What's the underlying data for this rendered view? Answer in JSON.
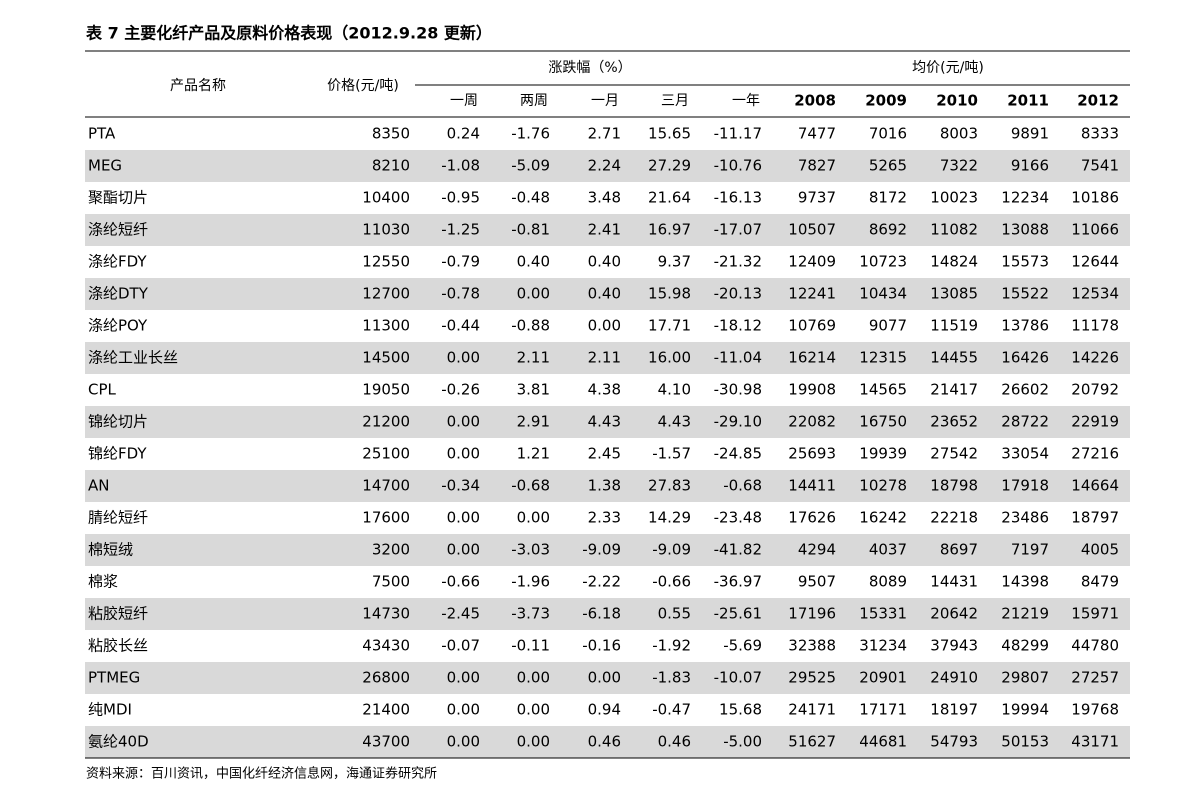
{
  "title": "表 7 主要化纤产品及原料价格表现（2012.9.28 更新）",
  "colors": {
    "up": "#c00000",
    "down": "#00a04a",
    "flat": "#000000",
    "stripe": "#d9d9d9"
  },
  "header": {
    "name": "产品名称",
    "price": "价格(元/吨)",
    "change_group": "涨跌幅（%）",
    "change_cols": [
      "一周",
      "两周",
      "一月",
      "三月",
      "一年"
    ],
    "avg_group": "均价(元/吨)",
    "avg_cols": [
      "2008",
      "2009",
      "2010",
      "2011",
      "2012"
    ]
  },
  "table": {
    "rows": [
      [
        "PTA",
        "8350",
        "0.24",
        "-1.76",
        "2.71",
        "15.65",
        "-11.17",
        "7477",
        "7016",
        "8003",
        "9891",
        "8333"
      ],
      [
        "MEG",
        "8210",
        "-1.08",
        "-5.09",
        "2.24",
        "27.29",
        "-10.76",
        "7827",
        "5265",
        "7322",
        "9166",
        "7541"
      ],
      [
        "聚酯切片",
        "10400",
        "-0.95",
        "-0.48",
        "3.48",
        "21.64",
        "-16.13",
        "9737",
        "8172",
        "10023",
        "12234",
        "10186"
      ],
      [
        "涤纶短纤",
        "11030",
        "-1.25",
        "-0.81",
        "2.41",
        "16.97",
        "-17.07",
        "10507",
        "8692",
        "11082",
        "13088",
        "11066"
      ],
      [
        "涤纶FDY",
        "12550",
        "-0.79",
        "0.40",
        "0.40",
        "9.37",
        "-21.32",
        "12409",
        "10723",
        "14824",
        "15573",
        "12644"
      ],
      [
        "涤纶DTY",
        "12700",
        "-0.78",
        "0.00",
        "0.40",
        "15.98",
        "-20.13",
        "12241",
        "10434",
        "13085",
        "15522",
        "12534"
      ],
      [
        "涤纶POY",
        "11300",
        "-0.44",
        "-0.88",
        "0.00",
        "17.71",
        "-18.12",
        "10769",
        "9077",
        "11519",
        "13786",
        "11178"
      ],
      [
        "涤纶工业长丝",
        "14500",
        "0.00",
        "2.11",
        "2.11",
        "16.00",
        "-11.04",
        "16214",
        "12315",
        "14455",
        "16426",
        "14226"
      ],
      [
        "CPL",
        "19050",
        "-0.26",
        "3.81",
        "4.38",
        "4.10",
        "-30.98",
        "19908",
        "14565",
        "21417",
        "26602",
        "20792"
      ],
      [
        "锦纶切片",
        "21200",
        "0.00",
        "2.91",
        "4.43",
        "4.43",
        "-29.10",
        "22082",
        "16750",
        "23652",
        "28722",
        "22919"
      ],
      [
        "锦纶FDY",
        "25100",
        "0.00",
        "1.21",
        "2.45",
        "-1.57",
        "-24.85",
        "25693",
        "19939",
        "27542",
        "33054",
        "27216"
      ],
      [
        "AN",
        "14700",
        "-0.34",
        "-0.68",
        "1.38",
        "27.83",
        "-0.68",
        "14411",
        "10278",
        "18798",
        "17918",
        "14664"
      ],
      [
        "腈纶短纤",
        "17600",
        "0.00",
        "0.00",
        "2.33",
        "14.29",
        "-23.48",
        "17626",
        "16242",
        "22218",
        "23486",
        "18797"
      ],
      [
        "棉短绒",
        "3200",
        "0.00",
        "-3.03",
        "-9.09",
        "-9.09",
        "-41.82",
        "4294",
        "4037",
        "8697",
        "7197",
        "4005"
      ],
      [
        "棉浆",
        "7500",
        "-0.66",
        "-1.96",
        "-2.22",
        "-0.66",
        "-36.97",
        "9507",
        "8089",
        "14431",
        "14398",
        "8479"
      ],
      [
        "粘胶短纤",
        "14730",
        "-2.45",
        "-3.73",
        "-6.18",
        "0.55",
        "-25.61",
        "17196",
        "15331",
        "20642",
        "21219",
        "15971"
      ],
      [
        "粘胶长丝",
        "43430",
        "-0.07",
        "-0.11",
        "-0.16",
        "-1.92",
        "-5.69",
        "32388",
        "31234",
        "37943",
        "48299",
        "44780"
      ],
      [
        "PTMEG",
        "26800",
        "0.00",
        "0.00",
        "0.00",
        "-1.83",
        "-10.07",
        "29525",
        "20901",
        "24910",
        "29807",
        "27257"
      ],
      [
        "纯MDI",
        "21400",
        "0.00",
        "0.00",
        "0.94",
        "-0.47",
        "15.68",
        "24171",
        "17171",
        "18197",
        "19994",
        "19768"
      ],
      [
        "氨纶40D",
        "43700",
        "0.00",
        "0.00",
        "0.46",
        "0.46",
        "-5.00",
        "51627",
        "44681",
        "54793",
        "50153",
        "43171"
      ]
    ]
  },
  "footnote": "资料来源：百川资讯，中国化纤经济信息网，海通证券研究所"
}
